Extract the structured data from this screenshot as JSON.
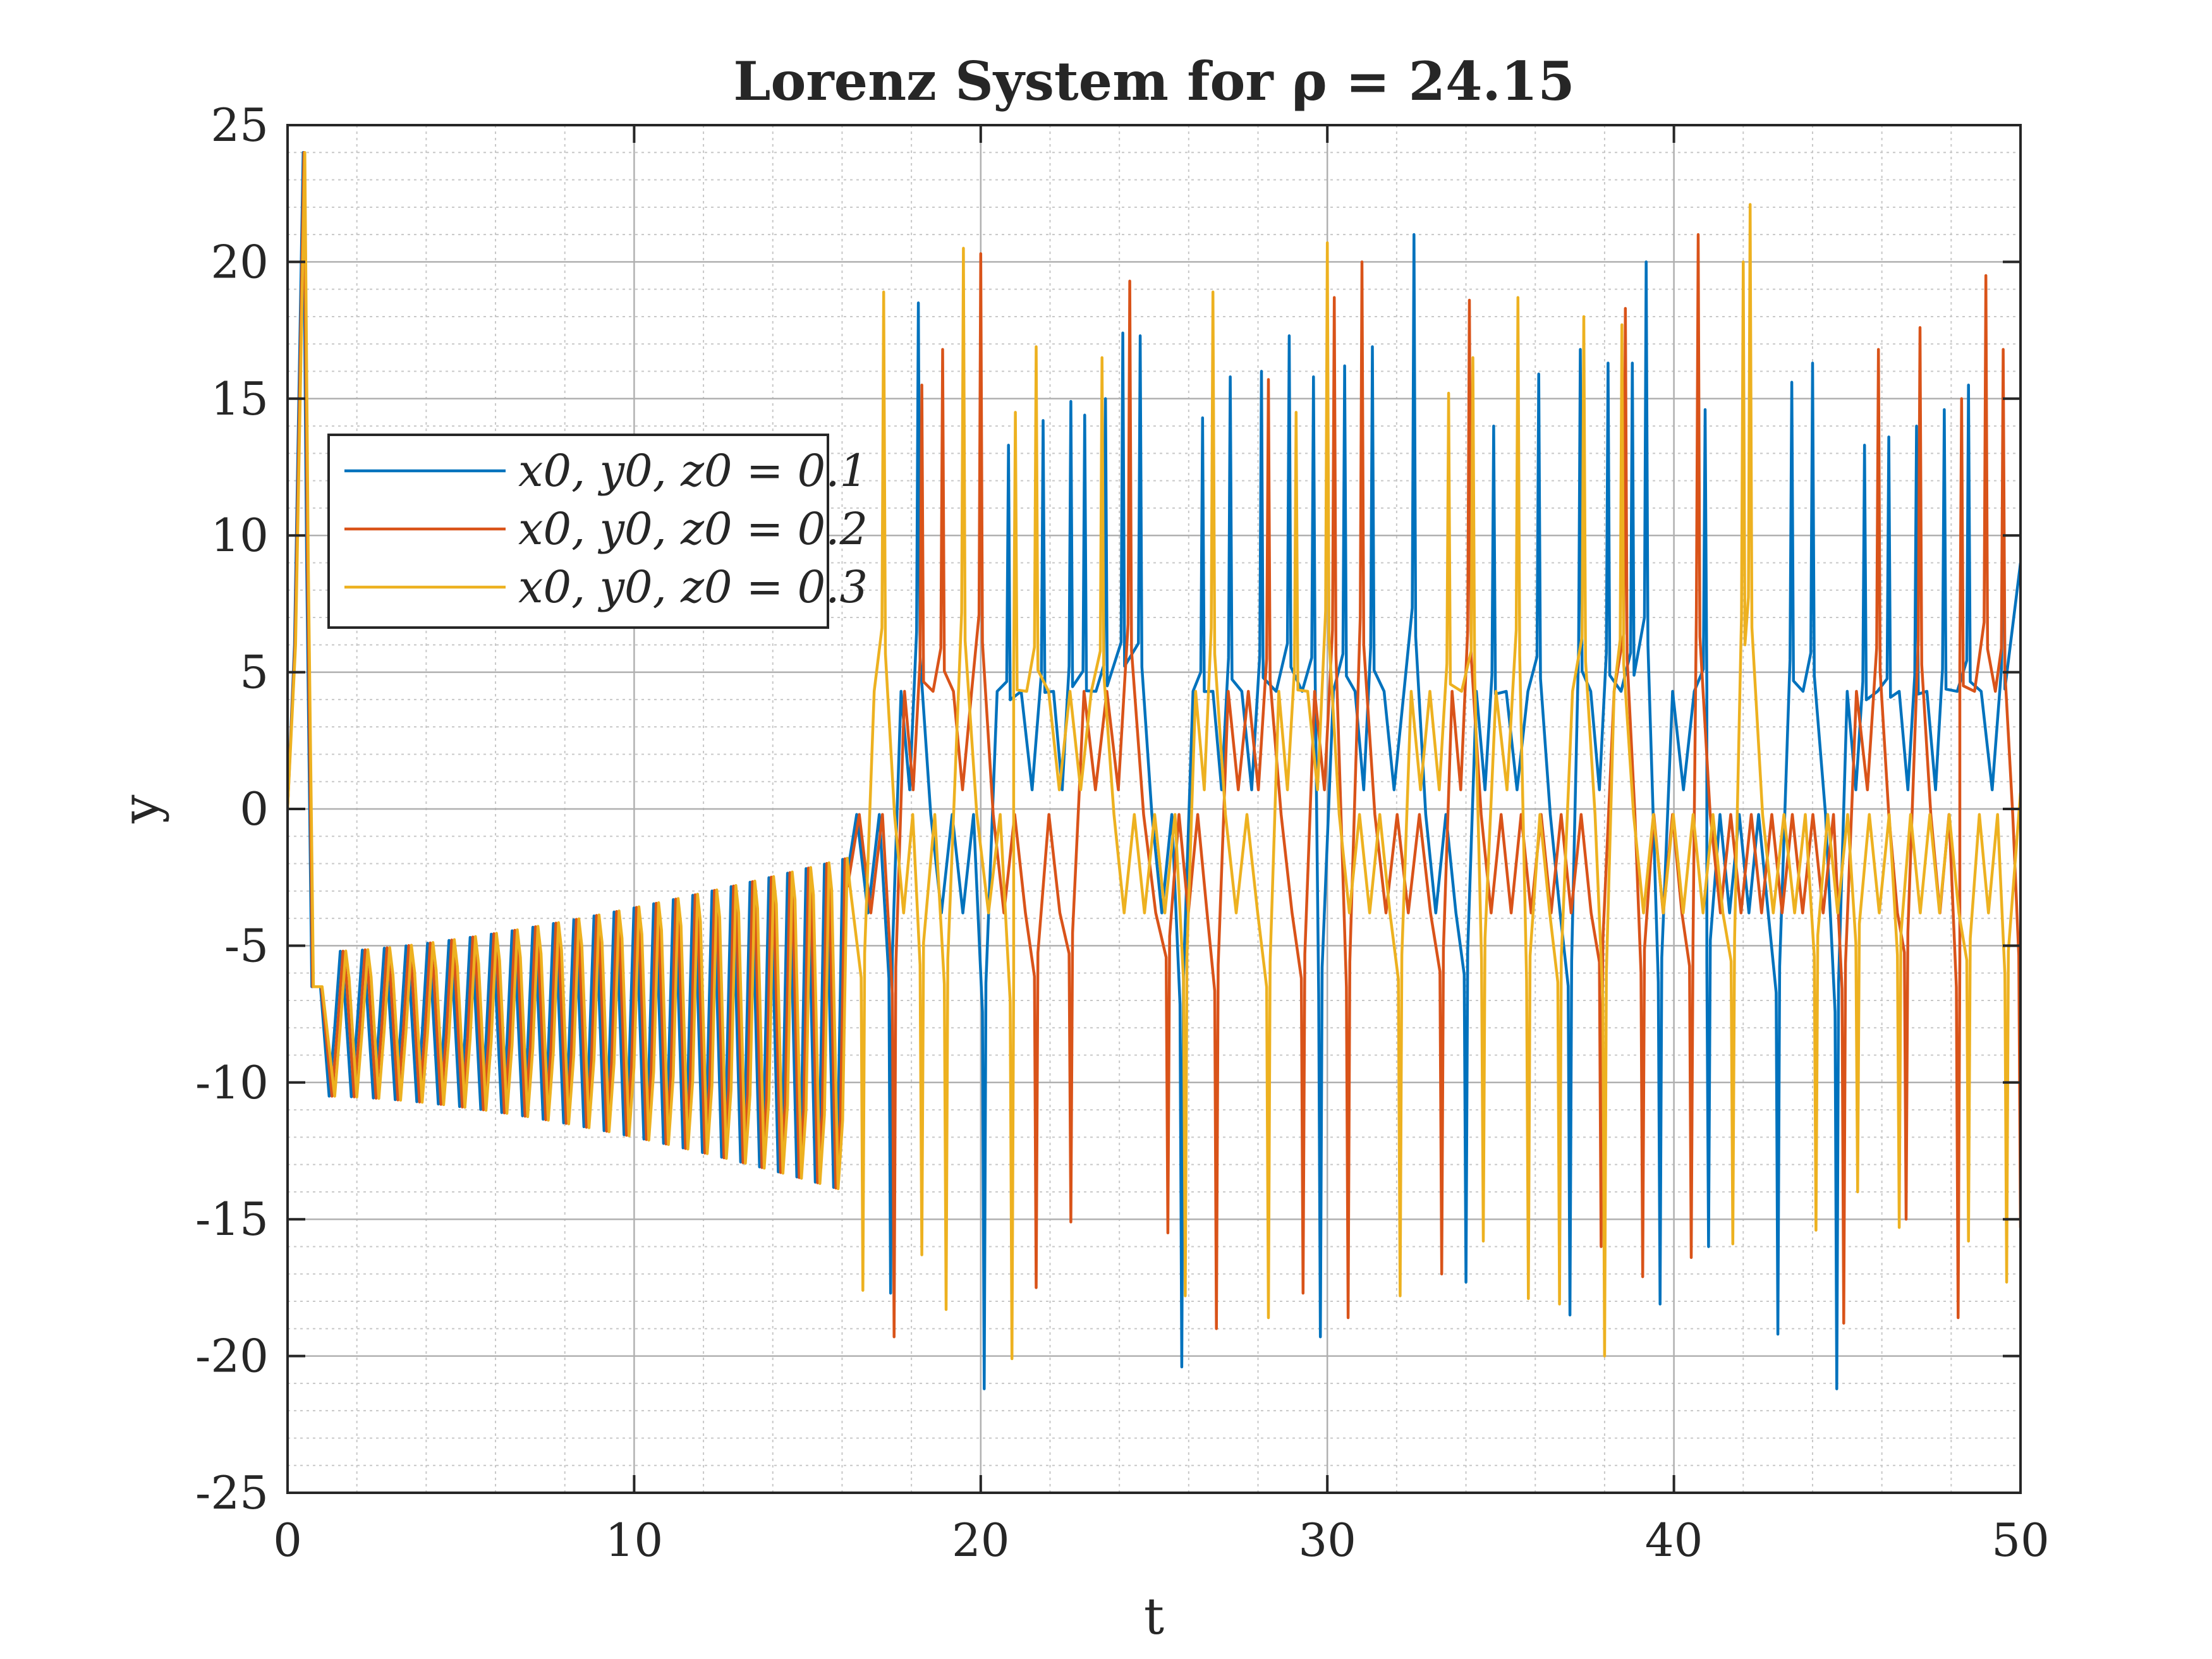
{
  "chart_data": {
    "type": "line",
    "title": "Lorenz System for ρ = 24.15",
    "xlabel": "t",
    "ylabel": "y",
    "xlim": [
      0,
      50
    ],
    "ylim": [
      -25,
      25
    ],
    "xticks": [
      0,
      10,
      20,
      30,
      40,
      50
    ],
    "yticks": [
      -25,
      -20,
      -15,
      -10,
      -5,
      0,
      5,
      10,
      15,
      20,
      25
    ],
    "grid": true,
    "minor_grid": true,
    "legend_position": "upper-left",
    "series": [
      {
        "name": "x0, y0, z0 = 0.1",
        "color": "#0072BD",
        "phase": 0,
        "peaks": [
          [
            0.4,
            24.0
          ],
          [
            18.2,
            18.5
          ],
          [
            20.8,
            13.3
          ],
          [
            21.8,
            14.2
          ],
          [
            22.6,
            14.9
          ],
          [
            23.0,
            14.4
          ],
          [
            23.6,
            15.0
          ],
          [
            24.1,
            17.4
          ],
          [
            24.6,
            17.3
          ],
          [
            26.4,
            14.3
          ],
          [
            27.2,
            15.8
          ],
          [
            28.1,
            16.0
          ],
          [
            28.9,
            17.3
          ],
          [
            29.6,
            15.8
          ],
          [
            30.5,
            16.2
          ],
          [
            31.3,
            16.9
          ],
          [
            32.5,
            21.0
          ],
          [
            34.8,
            14.0
          ],
          [
            36.1,
            15.9
          ],
          [
            37.3,
            16.8
          ],
          [
            38.1,
            16.3
          ],
          [
            38.8,
            16.3
          ],
          [
            39.2,
            20.0
          ],
          [
            40.9,
            14.6
          ],
          [
            43.4,
            15.6
          ],
          [
            44.0,
            16.3
          ],
          [
            45.5,
            13.3
          ],
          [
            46.2,
            13.6
          ],
          [
            47.0,
            14.0
          ],
          [
            47.8,
            14.6
          ],
          [
            48.5,
            15.5
          ],
          [
            49.5,
            14.6
          ]
        ],
        "troughs": [
          [
            17.4,
            -17.7
          ],
          [
            20.1,
            -21.2
          ],
          [
            25.8,
            -20.4
          ],
          [
            29.8,
            -19.3
          ],
          [
            34.0,
            -17.3
          ],
          [
            37.0,
            -18.5
          ],
          [
            39.6,
            -18.1
          ],
          [
            41.0,
            -16.0
          ],
          [
            43.0,
            -19.2
          ],
          [
            44.7,
            -21.2
          ]
        ]
      },
      {
        "name": "x0, y0, z0 = 0.2",
        "color": "#D95319",
        "phase": 0.08,
        "peaks": [
          [
            0.5,
            24.0
          ],
          [
            18.3,
            15.5
          ],
          [
            18.9,
            16.8
          ],
          [
            20.0,
            20.3
          ],
          [
            24.3,
            19.3
          ],
          [
            28.3,
            15.7
          ],
          [
            30.2,
            18.7
          ],
          [
            31.0,
            20.0
          ],
          [
            34.1,
            18.6
          ],
          [
            38.6,
            18.3
          ],
          [
            40.7,
            21.0
          ],
          [
            45.9,
            16.8
          ],
          [
            47.1,
            17.6
          ],
          [
            48.3,
            15.0
          ],
          [
            49.0,
            19.5
          ],
          [
            49.5,
            16.8
          ]
        ],
        "troughs": [
          [
            17.5,
            -19.3
          ],
          [
            21.6,
            -17.5
          ],
          [
            22.6,
            -15.1
          ],
          [
            25.4,
            -15.5
          ],
          [
            26.8,
            -19.0
          ],
          [
            29.3,
            -17.7
          ],
          [
            30.6,
            -18.6
          ],
          [
            33.3,
            -17.0
          ],
          [
            37.9,
            -16.0
          ],
          [
            39.1,
            -17.1
          ],
          [
            40.5,
            -16.4
          ],
          [
            44.9,
            -18.8
          ],
          [
            46.7,
            -15.0
          ],
          [
            48.2,
            -18.6
          ],
          [
            50.0,
            -15.3
          ]
        ]
      },
      {
        "name": "x0, y0, z0 = 0.3",
        "color": "#EDB120",
        "phase": 0.16,
        "peaks": [
          [
            0.6,
            24.0
          ],
          [
            17.2,
            18.9
          ],
          [
            19.5,
            20.5
          ],
          [
            21.0,
            14.5
          ],
          [
            21.6,
            16.9
          ],
          [
            23.5,
            16.5
          ],
          [
            26.7,
            18.9
          ],
          [
            29.1,
            14.5
          ],
          [
            30.0,
            20.7
          ],
          [
            33.5,
            15.2
          ],
          [
            34.2,
            16.5
          ],
          [
            35.5,
            18.7
          ],
          [
            37.4,
            18.0
          ],
          [
            38.5,
            17.7
          ],
          [
            42.0,
            20.0
          ],
          [
            42.2,
            22.1
          ]
        ],
        "troughs": [
          [
            16.6,
            -17.6
          ],
          [
            18.3,
            -16.3
          ],
          [
            19.0,
            -18.3
          ],
          [
            20.9,
            -20.1
          ],
          [
            25.9,
            -17.8
          ],
          [
            28.3,
            -18.6
          ],
          [
            32.1,
            -17.8
          ],
          [
            34.5,
            -15.8
          ],
          [
            35.8,
            -17.9
          ],
          [
            36.7,
            -18.1
          ],
          [
            38.0,
            -20.0
          ],
          [
            41.7,
            -15.9
          ],
          [
            44.1,
            -15.4
          ],
          [
            45.3,
            -14.0
          ],
          [
            46.5,
            -15.3
          ],
          [
            48.5,
            -15.8
          ],
          [
            49.6,
            -17.3
          ]
        ]
      }
    ]
  }
}
